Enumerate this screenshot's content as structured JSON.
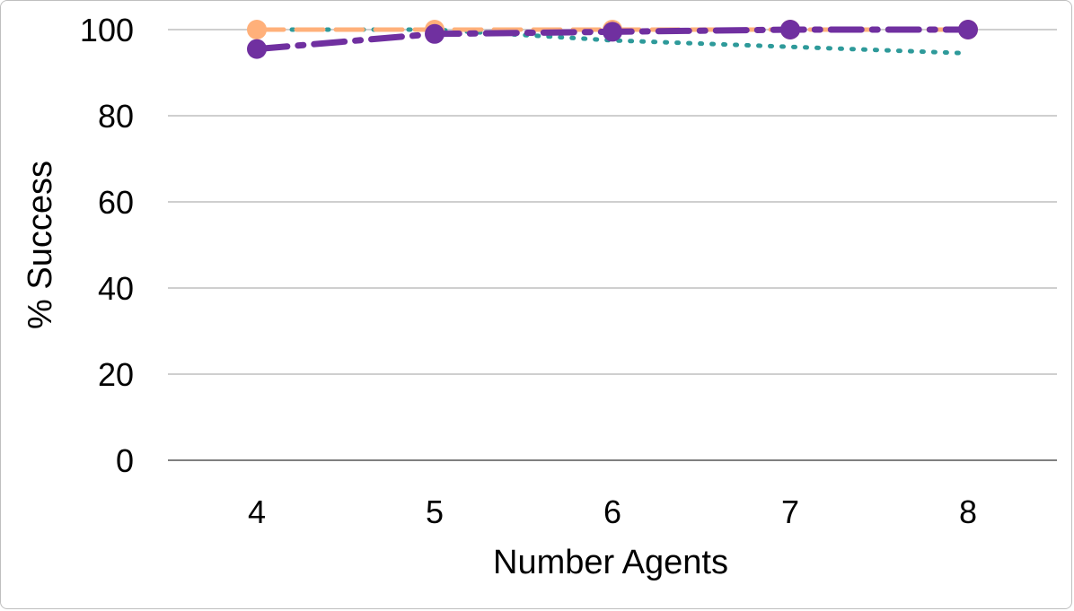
{
  "chart_data": {
    "type": "line",
    "title": "",
    "xlabel": "Number Agents",
    "ylabel": "% Success",
    "x": [
      4,
      5,
      6,
      7,
      8
    ],
    "xlim": [
      3.5,
      8.5
    ],
    "ylim": [
      0,
      100
    ],
    "yticks": [
      0,
      20,
      40,
      60,
      80,
      100
    ],
    "grid": "horizontal",
    "legend": "none",
    "series": [
      {
        "values": [
          100,
          100,
          97.5,
          96,
          94.5
        ],
        "color": "#2e9a9a",
        "line_style": "dotted",
        "marker": "none"
      },
      {
        "values": [
          100,
          100,
          100,
          100,
          100
        ],
        "color": "#ffb07a",
        "line_style": "dashed",
        "marker": "circle"
      },
      {
        "values": [
          95.5,
          99,
          99.5,
          100,
          100
        ],
        "color": "#7030a0",
        "line_style": "dash-dot",
        "marker": "circle"
      }
    ]
  }
}
